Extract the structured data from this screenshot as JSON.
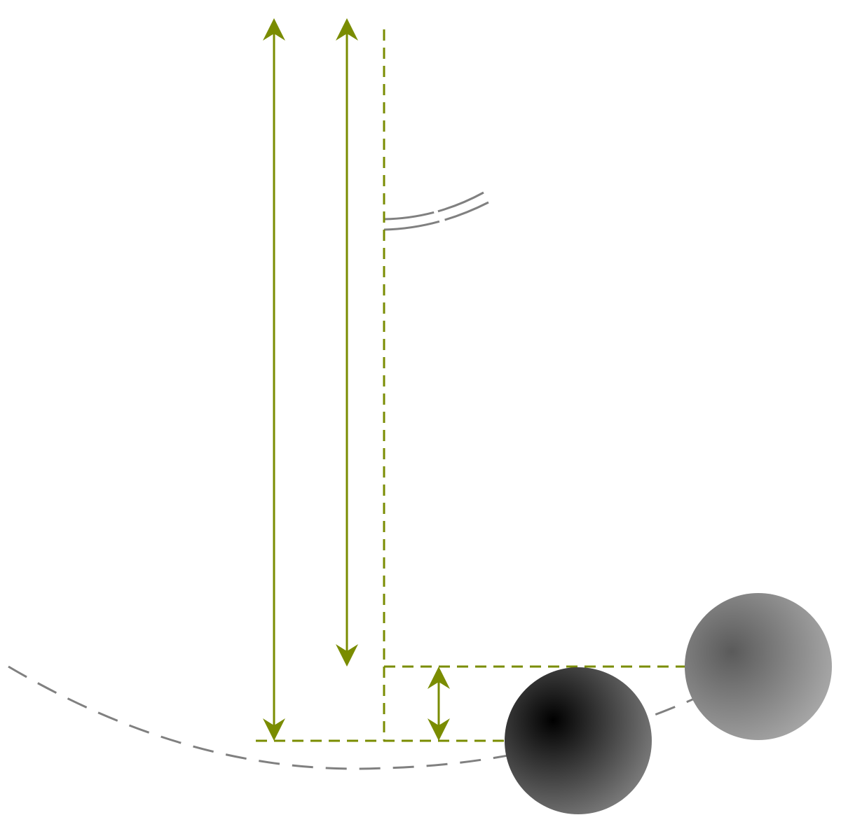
{
  "colors": {
    "dimension": "#7a8c00",
    "path": "#808080",
    "background": "#ffffff",
    "bob_low_center": "#000000",
    "bob_low_edge": "#7a7a7a",
    "bob_high_center": "#5a5a5a",
    "bob_high_edge": "#a8a8a8"
  },
  "icons": {
    "bob_low": "sphere",
    "bob_high": "sphere"
  }
}
